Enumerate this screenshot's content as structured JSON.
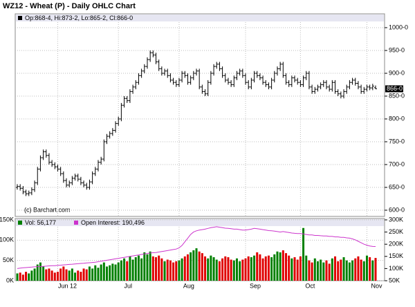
{
  "chart_data": [
    {
      "type": "ohlc",
      "title": "WZ12 - Wheat (P) - Daily OHLC Chart",
      "legend_label": "Op:868-4, Hi:873-2, Lo:865-2, Cl:866-0",
      "copyright": "(c) Barchart.com",
      "color": "#000000",
      "open": [
        650,
        652,
        648,
        640,
        636,
        638,
        645,
        660,
        690,
        715,
        728,
        720,
        705,
        700,
        695,
        690,
        680,
        665,
        655,
        660,
        670,
        675,
        668,
        660,
        655,
        650,
        662,
        680,
        690,
        705,
        712,
        750,
        762,
        768,
        775,
        790,
        800,
        830,
        845,
        840,
        860,
        870,
        880,
        895,
        905,
        915,
        930,
        945,
        940,
        925,
        910,
        900,
        905,
        895,
        885,
        880,
        875,
        885,
        900,
        895,
        880,
        890,
        900,
        905,
        870,
        860,
        855,
        880,
        900,
        915,
        920,
        910,
        895,
        885,
        880,
        875,
        890,
        900,
        905,
        895,
        880,
        870,
        885,
        900,
        895,
        890,
        880,
        875,
        870,
        885,
        900,
        910,
        920,
        895,
        880,
        875,
        890,
        885,
        880,
        875,
        890,
        900,
        870,
        860,
        865,
        870,
        875,
        880,
        870,
        865,
        880,
        860,
        855,
        850,
        860,
        870,
        880,
        885,
        878,
        870,
        860,
        865,
        870,
        868,
        868.5
      ],
      "high": [
        657,
        657,
        653,
        645,
        643,
        650,
        665,
        695,
        720,
        733,
        733,
        725,
        710,
        705,
        700,
        695,
        685,
        670,
        665,
        675,
        680,
        680,
        673,
        665,
        660,
        667,
        685,
        695,
        710,
        717,
        755,
        767,
        773,
        780,
        795,
        805,
        835,
        850,
        850,
        865,
        875,
        885,
        900,
        910,
        920,
        935,
        950,
        950,
        945,
        930,
        915,
        910,
        910,
        900,
        890,
        885,
        890,
        905,
        905,
        900,
        895,
        905,
        910,
        910,
        875,
        865,
        885,
        905,
        920,
        925,
        925,
        915,
        900,
        890,
        885,
        895,
        905,
        910,
        910,
        900,
        885,
        890,
        905,
        905,
        900,
        895,
        885,
        880,
        890,
        905,
        915,
        925,
        925,
        900,
        885,
        895,
        895,
        890,
        885,
        895,
        905,
        905,
        875,
        870,
        875,
        880,
        885,
        885,
        875,
        885,
        885,
        865,
        860,
        865,
        875,
        885,
        890,
        890,
        883,
        875,
        870,
        875,
        875,
        877,
        873.25
      ],
      "low": [
        645,
        643,
        635,
        631,
        631,
        633,
        640,
        655,
        685,
        710,
        715,
        700,
        695,
        690,
        685,
        675,
        660,
        650,
        650,
        655,
        665,
        663,
        655,
        650,
        645,
        645,
        657,
        675,
        685,
        700,
        707,
        745,
        757,
        763,
        770,
        785,
        795,
        825,
        835,
        835,
        855,
        865,
        875,
        890,
        900,
        910,
        925,
        935,
        920,
        905,
        895,
        895,
        890,
        880,
        875,
        870,
        870,
        880,
        890,
        875,
        875,
        885,
        895,
        865,
        855,
        850,
        850,
        875,
        895,
        910,
        905,
        890,
        880,
        875,
        870,
        870,
        885,
        895,
        890,
        875,
        865,
        865,
        880,
        890,
        885,
        875,
        870,
        865,
        865,
        880,
        895,
        905,
        890,
        875,
        870,
        870,
        880,
        875,
        870,
        870,
        885,
        865,
        855,
        855,
        860,
        865,
        870,
        865,
        860,
        860,
        855,
        850,
        845,
        845,
        855,
        865,
        875,
        873,
        865,
        855,
        855,
        860,
        863,
        863,
        865.25
      ],
      "close": [
        652,
        648,
        640,
        636,
        638,
        645,
        660,
        690,
        715,
        728,
        720,
        705,
        700,
        695,
        690,
        680,
        665,
        655,
        660,
        670,
        675,
        668,
        660,
        655,
        650,
        662,
        680,
        690,
        705,
        712,
        750,
        762,
        768,
        775,
        790,
        800,
        830,
        845,
        840,
        860,
        870,
        880,
        895,
        905,
        915,
        930,
        945,
        940,
        925,
        910,
        900,
        905,
        895,
        885,
        880,
        875,
        885,
        900,
        895,
        880,
        890,
        900,
        905,
        870,
        860,
        855,
        880,
        900,
        915,
        920,
        910,
        895,
        885,
        880,
        875,
        890,
        900,
        905,
        895,
        880,
        870,
        885,
        900,
        895,
        890,
        880,
        875,
        870,
        885,
        900,
        910,
        920,
        895,
        880,
        875,
        890,
        885,
        880,
        875,
        890,
        900,
        870,
        860,
        865,
        870,
        875,
        880,
        870,
        865,
        880,
        860,
        855,
        850,
        860,
        870,
        880,
        885,
        878,
        870,
        860,
        865,
        870,
        868,
        872,
        866
      ],
      "ylim": [
        600,
        1000
      ],
      "yticks": [
        {
          "value": 600,
          "label": "600-0"
        },
        {
          "value": 650,
          "label": "650-0"
        },
        {
          "value": 700,
          "label": "700-0"
        },
        {
          "value": 750,
          "label": "750-0"
        },
        {
          "value": 800,
          "label": "800-0"
        },
        {
          "value": 850,
          "label": "850-0"
        },
        {
          "value": 900,
          "label": "900-0"
        },
        {
          "value": 950,
          "label": "950-0"
        },
        {
          "value": 1000,
          "label": "1000-0"
        }
      ],
      "last_price": {
        "value": 866,
        "label": "866-0"
      },
      "grid": true
    },
    {
      "type": "volume",
      "up_color": "#008000",
      "down_color": "#e00000",
      "categories": [
        null,
        null,
        null,
        null,
        null,
        null,
        null,
        null,
        null,
        null,
        null,
        null,
        null,
        null,
        "Jun 12",
        null,
        null,
        null,
        null,
        null,
        null,
        null,
        null,
        null,
        null,
        null,
        null,
        null,
        null,
        null,
        null,
        null,
        null,
        null,
        null,
        "Jul",
        null,
        null,
        null,
        null,
        null,
        null,
        null,
        null,
        null,
        null,
        null,
        null,
        null,
        null,
        null,
        null,
        null,
        null,
        null,
        null,
        "Aug",
        null,
        null,
        null,
        null,
        null,
        null,
        null,
        null,
        null,
        null,
        null,
        null,
        null,
        null,
        null,
        null,
        null,
        null,
        null,
        null,
        null,
        null,
        "Sep",
        null,
        null,
        null,
        null,
        null,
        null,
        null,
        null,
        null,
        null,
        null,
        null,
        null,
        null,
        null,
        null,
        null,
        null,
        "Oct",
        null,
        null,
        null,
        null,
        null,
        null,
        null,
        null,
        null,
        null,
        null,
        null,
        null,
        null,
        null,
        null,
        null,
        null,
        null,
        null,
        null,
        null,
        "Nov",
        null,
        null,
        null
      ],
      "series": [
        {
          "name": "Vol: 56,177",
          "color": "#008000",
          "values": [
            18000,
            20000,
            15000,
            22000,
            18000,
            25000,
            30000,
            40000,
            45000,
            35000,
            28000,
            30000,
            25000,
            20000,
            22000,
            30000,
            35000,
            28000,
            25000,
            30000,
            20000,
            25000,
            22000,
            30000,
            28000,
            35000,
            30000,
            38000,
            32000,
            40000,
            45000,
            35000,
            38000,
            42000,
            40000,
            45000,
            50000,
            55000,
            48000,
            60000,
            52000,
            58000,
            62000,
            55000,
            70000,
            65000,
            72000,
            60000,
            58000,
            62000,
            55000,
            48000,
            52000,
            50000,
            45000,
            48000,
            50000,
            55000,
            60000,
            65000,
            70000,
            75000,
            80000,
            72000,
            68000,
            60000,
            55000,
            62000,
            58000,
            52000,
            48000,
            55000,
            60000,
            58000,
            52000,
            50000,
            55000,
            48000,
            52000,
            55000,
            60000,
            58000,
            62000,
            70000,
            65000,
            55000,
            60000,
            62000,
            58000,
            65000,
            72000,
            70000,
            75000,
            68000,
            62000,
            55000,
            58000,
            52000,
            60000,
            130000,
            62000,
            50000,
            45000,
            55000,
            48000,
            52000,
            45000,
            50000,
            42000,
            55000,
            60000,
            48000,
            52000,
            58000,
            50000,
            45000,
            50000,
            55000,
            60000,
            52000,
            48000,
            62000,
            58000,
            50000,
            56177
          ]
        },
        {
          "name": "Open Interest: 190,496",
          "color": "#cc33cc",
          "axis": "y2",
          "values": [
            100000,
            102000,
            103000,
            104000,
            105000,
            106000,
            107000,
            108000,
            108000,
            109000,
            110000,
            111000,
            112000,
            112000,
            113000,
            114000,
            115000,
            116000,
            117000,
            118000,
            119000,
            120000,
            121000,
            122000,
            123000,
            124000,
            125000,
            126000,
            128000,
            130000,
            132000,
            134000,
            136000,
            138000,
            140000,
            142000,
            144000,
            146000,
            148000,
            150000,
            152000,
            154000,
            156000,
            158000,
            160000,
            162000,
            164000,
            165000,
            166000,
            168000,
            170000,
            172000,
            174000,
            176000,
            178000,
            180000,
            185000,
            195000,
            210000,
            225000,
            240000,
            250000,
            255000,
            258000,
            260000,
            262000,
            265000,
            268000,
            270000,
            272000,
            270000,
            268000,
            266000,
            265000,
            264000,
            262000,
            262000,
            260000,
            258000,
            258000,
            260000,
            262000,
            265000,
            264000,
            262000,
            260000,
            258000,
            256000,
            255000,
            254000,
            252000,
            250000,
            252000,
            250000,
            248000,
            246000,
            245000,
            244000,
            244000,
            242000,
            240000,
            238000,
            238000,
            236000,
            236000,
            235000,
            234000,
            234000,
            232000,
            232000,
            230000,
            230000,
            228000,
            228000,
            226000,
            225000,
            222000,
            218000,
            212000,
            206000,
            200000,
            196000,
            193000,
            191000,
            190496
          ]
        }
      ],
      "ylim": [
        0,
        150000
      ],
      "yticks": [
        {
          "value": 0,
          "label": "0K"
        },
        {
          "value": 50000,
          "label": "50K"
        },
        {
          "value": 100000,
          "label": "100K"
        },
        {
          "value": 150000,
          "label": "150K"
        }
      ],
      "y2lim": [
        50000,
        300000
      ],
      "y2ticks": [
        {
          "value": 50000,
          "label": "50K"
        },
        {
          "value": 100000,
          "label": "100K"
        },
        {
          "value": 150000,
          "label": "150K"
        },
        {
          "value": 200000,
          "label": "200K"
        },
        {
          "value": 250000,
          "label": "250K"
        },
        {
          "value": 300000,
          "label": "300K"
        }
      ],
      "grid": true
    }
  ]
}
